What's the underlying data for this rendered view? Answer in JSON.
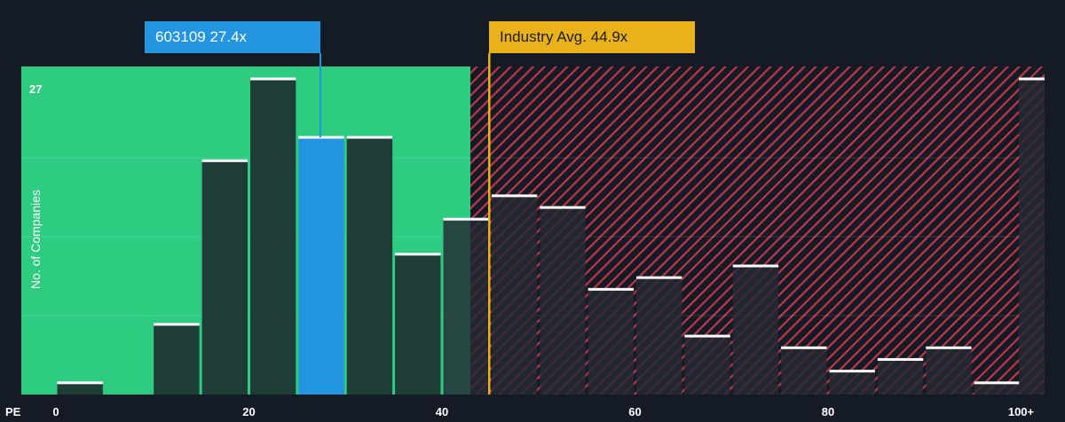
{
  "chart_data": {
    "type": "bar",
    "xlabel": "PE",
    "ylabel": "No. of Companies",
    "x_tick_labels": [
      "0",
      "20",
      "40",
      "60",
      "80",
      "100+"
    ],
    "x_ticks": [
      0,
      20,
      40,
      60,
      80,
      100
    ],
    "y_tick_label": "27",
    "bin_width": 5,
    "bins_start": [
      0,
      5,
      10,
      15,
      20,
      25,
      30,
      35,
      40,
      45,
      50,
      55,
      60,
      65,
      70,
      75,
      80,
      85,
      90,
      95,
      100
    ],
    "values": [
      1,
      0,
      6,
      20,
      27,
      22,
      22,
      12,
      15,
      17,
      16,
      9,
      10,
      5,
      11,
      4,
      2,
      3,
      4,
      1,
      27
    ],
    "highlight_bin_index": 5,
    "company": {
      "ticker": "603109",
      "pe": 27.4,
      "label": "603109 27.4x"
    },
    "industry": {
      "avg_pe": 44.9,
      "label": "Industry Avg. 44.9x"
    },
    "colors": {
      "background": "#151b24",
      "undervalued_zone": "#2ecc80",
      "overvalued_hatch": "#c0364a",
      "bar": "#1e3d37",
      "bar_over": "#242a33",
      "company_bar": "#2394e0",
      "industry_line": "#e9b21a",
      "bar_top": "#ffffff"
    }
  }
}
